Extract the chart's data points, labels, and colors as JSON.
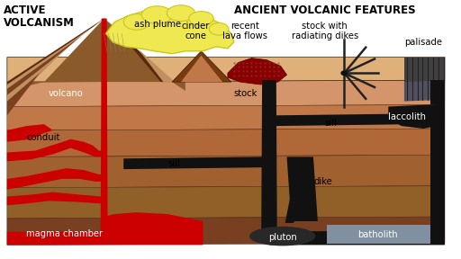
{
  "title_left": "ACTIVE\nVOLCANISM",
  "title_right": "ANCIENT VOLCANIC FEATURES",
  "labels": {
    "ash_plume": "ash plume",
    "cinder_cone": "cinder\ncone",
    "recent_lava": "recent\nlava flows",
    "stock_with": "stock with\nradiating dikes",
    "palisade": "palisade",
    "volcano": "volcano",
    "conduit": "conduit",
    "sill_upper": "sill",
    "sill_lower": "sill",
    "dike": "dike",
    "stock": "stock",
    "laccolith": "laccolith",
    "magma_chamber": "magma chamber",
    "pluton": "pluton",
    "batholith": "batholith"
  },
  "colors": {
    "sky": "#ffffff",
    "layer1": "#d4956a",
    "layer2": "#c07848",
    "layer3": "#b06838",
    "layer4": "#a06030",
    "layer5": "#906028",
    "layer6": "#784020",
    "top_face": "#e0b07a",
    "magma_red": "#cc0000",
    "intrusion_black": "#111111",
    "ash_plume_fill": "#f0e850",
    "ash_plume_border": "#c8c820",
    "cinder_cone_fill": "#7a3a10",
    "cinder_cone_light": "#c07848",
    "recent_lava_fill": "#880000",
    "palisade_fill": "#404040",
    "pluton_fill": "#282828",
    "batholith_fill": "#8090a0",
    "vol_dark": "#5a2a0a",
    "vol_mid": "#8b5a2b",
    "vol_light": "#c09060",
    "outline": "#3a1a00"
  }
}
